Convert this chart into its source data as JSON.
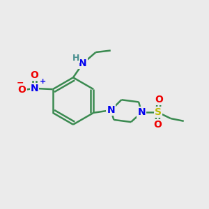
{
  "background_color": "#ebebeb",
  "bond_color": "#3a8a50",
  "bond_width": 1.8,
  "atom_colors": {
    "N": "#0000ee",
    "O": "#ee0000",
    "S": "#bbbb00",
    "H": "#4a9090",
    "C": "#3a8a50"
  },
  "figsize": [
    3.0,
    3.0
  ],
  "dpi": 100,
  "xlim": [
    0,
    12
  ],
  "ylim": [
    0,
    12
  ]
}
